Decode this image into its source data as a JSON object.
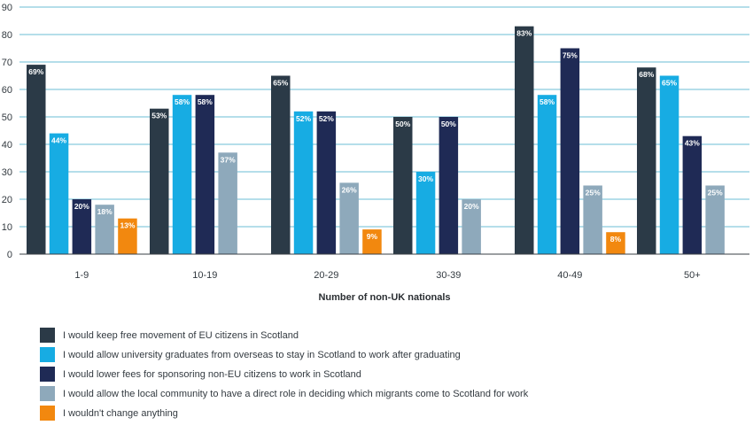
{
  "chart_data": {
    "type": "bar",
    "xlabel": "Number of non-UK nationals",
    "ylabel": "",
    "ylim": [
      0,
      90
    ],
    "yticks": [
      0,
      10,
      20,
      30,
      40,
      50,
      60,
      70,
      80,
      90
    ],
    "grid": true,
    "legend_position": "bottom",
    "categories": [
      "1-9",
      "10-19",
      "20-29",
      "30-39",
      "40-49",
      "50+"
    ],
    "series": [
      {
        "name": "I would keep free movement of EU citizens in Scotland",
        "color": "#2b3a47",
        "values": [
          69,
          53,
          65,
          50,
          83,
          68
        ],
        "labels": [
          "69%",
          "53%",
          "65%",
          "50%",
          "83%",
          "68%"
        ]
      },
      {
        "name": "I would allow university graduates from overseas to stay in Scotland to work after graduating",
        "color": "#17ace3",
        "values": [
          44,
          58,
          52,
          30,
          58,
          65
        ],
        "labels": [
          "44%",
          "58%",
          "52%",
          "30%",
          "58%",
          "65%"
        ]
      },
      {
        "name": "I would lower fees for sponsoring non-EU citizens to work in Scotland",
        "color": "#1f2a55",
        "values": [
          20,
          58,
          52,
          50,
          75,
          43
        ],
        "labels": [
          "20%",
          "58%",
          "52%",
          "50%",
          "75%",
          "43%"
        ]
      },
      {
        "name": "I would allow the local community to have a direct role in deciding which migrants come to Scotland for work",
        "color": "#8ea9bb",
        "values": [
          18,
          37,
          26,
          20,
          25,
          25
        ],
        "labels": [
          "18%",
          "37%",
          "26%",
          "20%",
          "25%",
          "25%"
        ]
      },
      {
        "name": "I wouldn't change anything",
        "color": "#f2880f",
        "values": [
          13,
          null,
          9,
          null,
          8,
          null
        ],
        "labels": [
          "13%",
          "",
          "9%",
          "",
          "8%",
          ""
        ]
      }
    ]
  }
}
